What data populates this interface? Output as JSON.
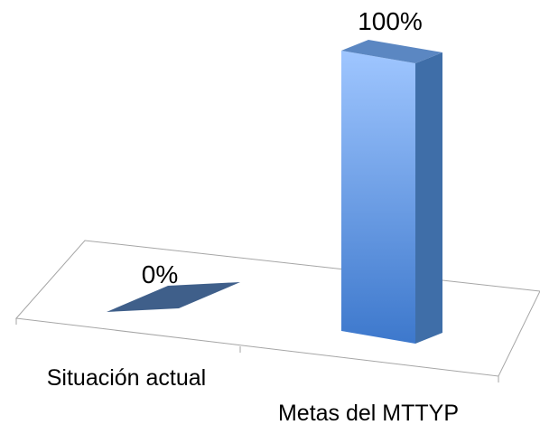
{
  "chart_data": {
    "type": "bar",
    "three_d": true,
    "categories": [
      "Situación actual",
      "Metas del MTTYP"
    ],
    "values": [
      0,
      100
    ],
    "data_labels": [
      "0%",
      "100%"
    ],
    "ylim": [
      0,
      100
    ],
    "grid": false,
    "legend": "none",
    "colors": {
      "bar_front_top": "#9fc6ff",
      "bar_front_bottom": "#3d78cc",
      "bar_side": "#3f6ea8",
      "bar_top": "#5b87c2",
      "zero_bar": "#3f5f8a",
      "floor_line": "#a6a6a6"
    }
  }
}
